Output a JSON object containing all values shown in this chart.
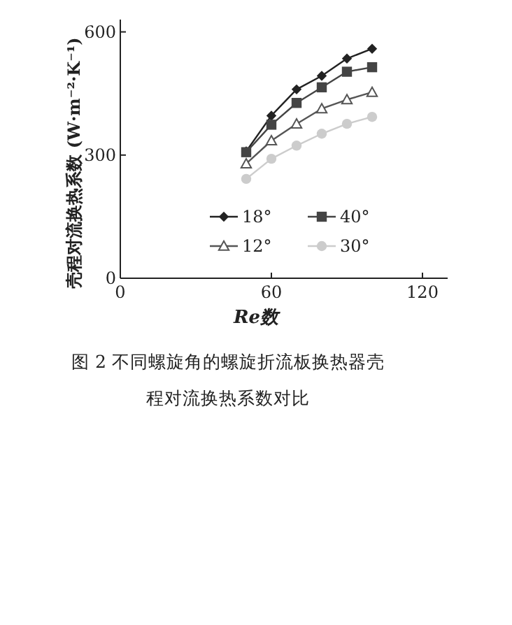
{
  "chart_data": {
    "type": "line",
    "title": "图 2  不同螺旋角的螺旋折流板换热器壳程对流换热系数对比",
    "xlabel": "Re数",
    "ylabel": "壳程对流换热系数 (W·m⁻²·K⁻¹)",
    "x": [
      50,
      60,
      70,
      80,
      90,
      100
    ],
    "xlim": [
      0,
      130
    ],
    "ylim": [
      0,
      630
    ],
    "xticks": [
      0,
      60,
      120
    ],
    "yticks": [
      0,
      300,
      600
    ],
    "grid": false,
    "legend": "bottom right",
    "line_style": "solid",
    "series": [
      {
        "name": "18°",
        "color": "#222222",
        "marker": "diamond",
        "values": [
          309,
          396,
          460,
          493,
          535,
          559
        ]
      },
      {
        "name": "40°",
        "color": "#444444",
        "marker": "square",
        "values": [
          307,
          374,
          427,
          465,
          503,
          514
        ]
      },
      {
        "name": "12°",
        "color": "#555555",
        "marker": "triangle",
        "values": [
          279,
          335,
          376,
          413,
          435,
          453
        ]
      },
      {
        "name": "30°",
        "color": "#cccccc",
        "marker": "circle",
        "values": [
          242,
          291,
          323,
          352,
          376,
          393
        ]
      }
    ]
  }
}
